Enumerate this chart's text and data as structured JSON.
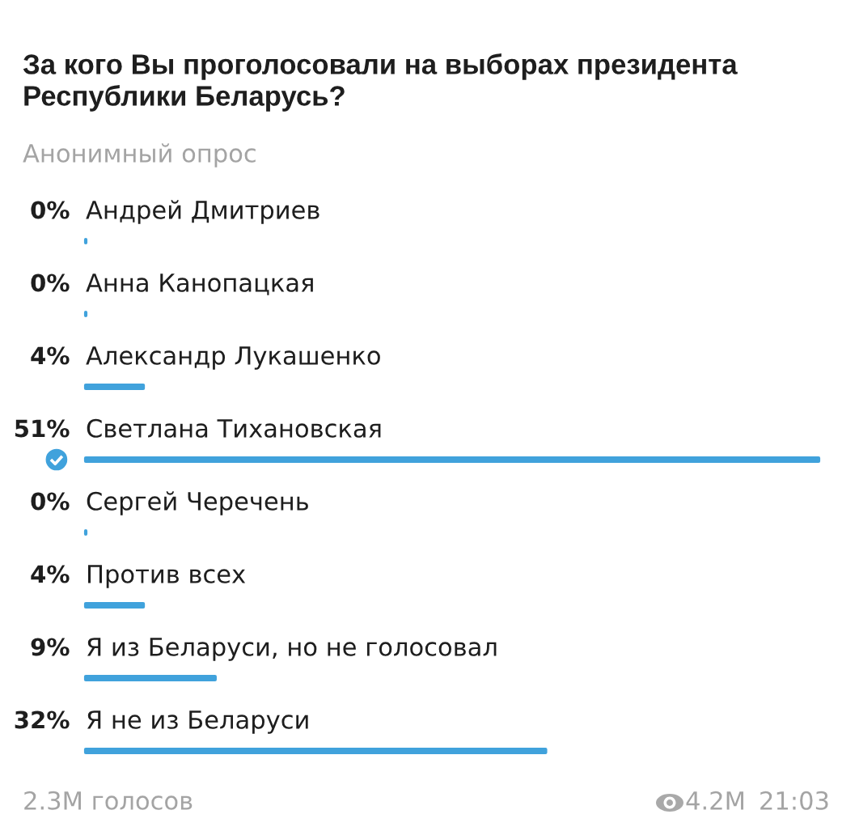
{
  "chart_data": {
    "type": "bar",
    "orientation": "horizontal",
    "title": "За кого Вы проголосовали на выборах президента\nРеспублики Беларусь?",
    "subtitle": "Анонимный опрос",
    "categories": [
      "Андрей Дмитриев",
      "Анна Канопацкая",
      "Александр Лукашенко",
      "Светлана Тихановская",
      "Сергей Черечень",
      "Против всех",
      "Я из Беларуси, но не голосовал",
      "Я не из Беларуси"
    ],
    "values": [
      0,
      0,
      4,
      51,
      0,
      4,
      9,
      32
    ],
    "value_labels": [
      "0%",
      "0%",
      "4%",
      "51%",
      "0%",
      "4%",
      "9%",
      "32%"
    ],
    "color": "#40a2dc",
    "annotations": [
      "2.3M голосов",
      "4.2M",
      "21:03"
    ]
  }
}
